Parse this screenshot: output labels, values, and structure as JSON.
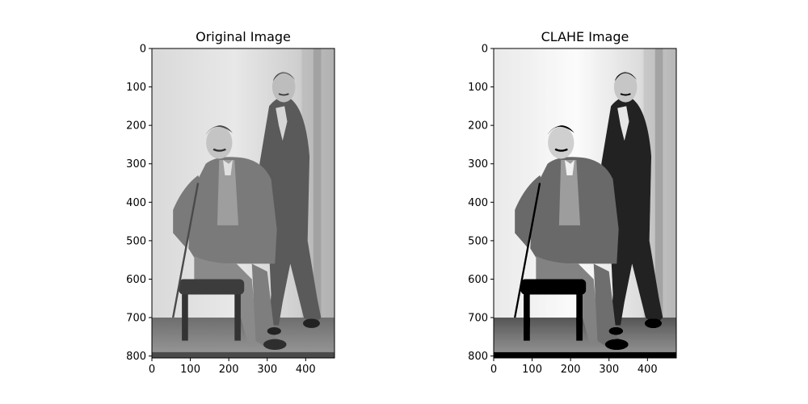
{
  "chart_data": [
    {
      "type": "image",
      "title": "Original Image",
      "xlabel": "",
      "ylabel": "",
      "image_width": 475,
      "image_height": 805,
      "xlim": [
        0,
        475
      ],
      "ylim": [
        805,
        0
      ],
      "x_ticks": [
        0,
        100,
        200,
        300,
        400
      ],
      "y_ticks": [
        0,
        100,
        200,
        300,
        400,
        500,
        600,
        700,
        800
      ],
      "contrast": "original",
      "grid": false
    },
    {
      "type": "image",
      "title": "CLAHE Image",
      "xlabel": "",
      "ylabel": "",
      "image_width": 475,
      "image_height": 805,
      "xlim": [
        0,
        475
      ],
      "ylim": [
        805,
        0
      ],
      "x_ticks": [
        0,
        100,
        200,
        300,
        400
      ],
      "y_ticks": [
        0,
        100,
        200,
        300,
        400,
        500,
        600,
        700,
        800
      ],
      "contrast": "clahe",
      "grid": false
    }
  ],
  "colors": {
    "background": "#ffffff",
    "axis": "#000000"
  }
}
